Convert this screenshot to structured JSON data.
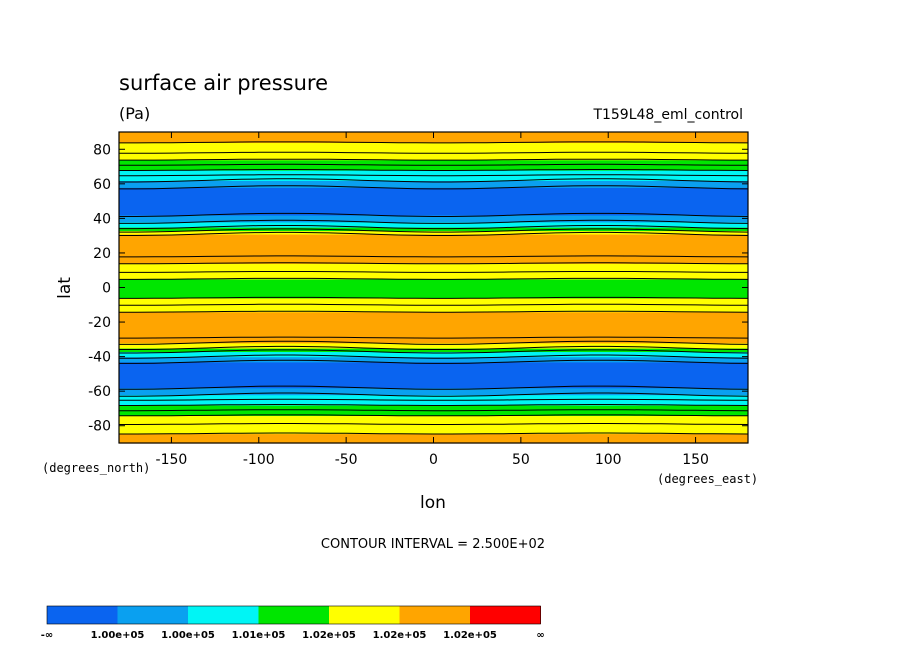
{
  "chart_data": {
    "type": "heatmap",
    "title": "surface air pressure",
    "units": "(Pa)",
    "run_label": "T159L48_eml_control",
    "xlabel": "lon",
    "ylabel": "lat",
    "x_units": "(degrees_east)",
    "y_units": "(degrees_north)",
    "xlim": [
      -180,
      180
    ],
    "ylim": [
      -90,
      90
    ],
    "x_ticks": [
      -150,
      -100,
      -50,
      0,
      50,
      100,
      150
    ],
    "x_tick_labels": [
      "-150",
      "-100",
      "-50",
      "0",
      "50",
      "100",
      "150"
    ],
    "y_ticks": [
      -80,
      -60,
      -40,
      -20,
      0,
      20,
      40,
      60,
      80
    ],
    "y_tick_labels": [
      "-80",
      "-60",
      "-40",
      "-20",
      "0",
      "20",
      "40",
      "60",
      "80"
    ],
    "contour_interval_text": "CONTOUR INTERVAL = 2.500E+02",
    "colorbar": {
      "colors": [
        "#0a64f0",
        "#0aa0f0",
        "#00f5f5",
        "#00e600",
        "#ffff00",
        "#ffa500",
        "#ff0000"
      ],
      "labels": [
        "-∞",
        "1.00e+05",
        "1.00e+05",
        "1.01e+05",
        "1.02e+05",
        "1.02e+05",
        "1.02e+05",
        "∞"
      ]
    },
    "bands": [
      {
        "lat": [
          -90,
          -84.5
        ],
        "color": 5
      },
      {
        "lat": [
          -84.5,
          -79
        ],
        "color": 4
      },
      {
        "lat": [
          -79,
          -74
        ],
        "color": 4
      },
      {
        "lat": [
          -74,
          -71
        ],
        "color": 3
      },
      {
        "lat": [
          -71,
          -68
        ],
        "color": 3
      },
      {
        "lat": [
          -68,
          -65
        ],
        "color": 2
      },
      {
        "lat": [
          -65,
          -62
        ],
        "color": 2
      },
      {
        "lat": [
          -62,
          -58
        ],
        "color": 1
      },
      {
        "lat": [
          -58,
          -43
        ],
        "color": 0
      },
      {
        "lat": [
          -43,
          -40
        ],
        "color": 1
      },
      {
        "lat": [
          -40,
          -37
        ],
        "color": 2
      },
      {
        "lat": [
          -37,
          -35
        ],
        "color": 3
      },
      {
        "lat": [
          -35,
          -32
        ],
        "color": 4
      },
      {
        "lat": [
          -32,
          -29
        ],
        "color": 5
      },
      {
        "lat": [
          -29,
          -14
        ],
        "color": 5
      },
      {
        "lat": [
          -14,
          -10
        ],
        "color": 4
      },
      {
        "lat": [
          -10,
          -6
        ],
        "color": 4
      },
      {
        "lat": [
          -6,
          5
        ],
        "color": 3
      },
      {
        "lat": [
          5,
          9
        ],
        "color": 4
      },
      {
        "lat": [
          9,
          14
        ],
        "color": 4
      },
      {
        "lat": [
          14,
          18
        ],
        "color": 5
      },
      {
        "lat": [
          18,
          31
        ],
        "color": 5
      },
      {
        "lat": [
          31,
          33
        ],
        "color": 4
      },
      {
        "lat": [
          33,
          35
        ],
        "color": 3
      },
      {
        "lat": [
          35,
          38
        ],
        "color": 2
      },
      {
        "lat": [
          38,
          42
        ],
        "color": 1
      },
      {
        "lat": [
          42,
          58
        ],
        "color": 0
      },
      {
        "lat": [
          58,
          62
        ],
        "color": 1
      },
      {
        "lat": [
          62,
          65
        ],
        "color": 2
      },
      {
        "lat": [
          65,
          68
        ],
        "color": 2
      },
      {
        "lat": [
          68,
          71
        ],
        "color": 3
      },
      {
        "lat": [
          71,
          74
        ],
        "color": 3
      },
      {
        "lat": [
          74,
          78
        ],
        "color": 4
      },
      {
        "lat": [
          78,
          84
        ],
        "color": 4
      },
      {
        "lat": [
          84,
          90
        ],
        "color": 5
      }
    ]
  }
}
